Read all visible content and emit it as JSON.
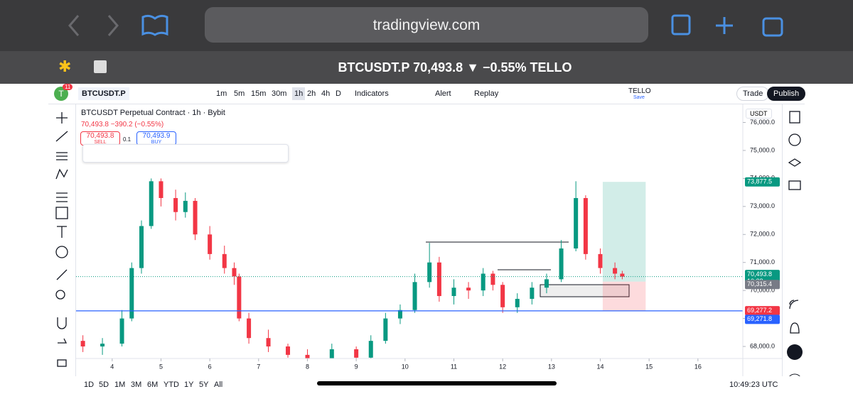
{
  "browser": {
    "url": "tradingview.com",
    "page_title": "BTCUSDT.P 70,493.8 ▼ −0.55% TELLO"
  },
  "toolbar": {
    "avatar": "T",
    "notifications": "11",
    "symbol": "BTCUSDT.P",
    "intervals": [
      "1m",
      "5m",
      "15m",
      "30m",
      "1h",
      "2h",
      "4h",
      "D"
    ],
    "indicators": "Indicators",
    "alert": "Alert",
    "replay": "Replay",
    "layout_name": "TELLO",
    "save": "Save",
    "trade": "Trade",
    "publish": "Publish"
  },
  "legend": {
    "title": "BTCUSDT Perpetual Contract · 1h · Bybit",
    "quote": "70,493.8 −390.2 (−0.55%)",
    "sell_price": "70,493.8",
    "sell": "SELL",
    "quantity": "0.1",
    "buy_price": "70,493.9",
    "buy": "BUY"
  },
  "chart_data": {
    "type": "candlestick",
    "currency": "USDT",
    "x": [
      3.4,
      3.8,
      4.2,
      4.4,
      4.6,
      4.8,
      5.0,
      5.3,
      5.5,
      5.7,
      6.0,
      6.3,
      6.5,
      6.6,
      6.8,
      7.2,
      7.6,
      8.0,
      8.5,
      9.0,
      9.3,
      9.6,
      9.9,
      10.2,
      10.5,
      10.7,
      11.0,
      11.3,
      11.6,
      11.8,
      12.0,
      12.3,
      12.6,
      12.9,
      13.2,
      13.5,
      13.7,
      14.0,
      14.3,
      14.45
    ],
    "open": [
      68200,
      68000,
      68100,
      69000,
      70800,
      72300,
      73900,
      73300,
      72800,
      73200,
      72000,
      71300,
      70800,
      70500,
      69000,
      68300,
      68000,
      67700,
      67500,
      67900,
      67600,
      68200,
      69000,
      69300,
      70300,
      71000,
      69800,
      70100,
      70000,
      70600,
      70200,
      69400,
      69700,
      70100,
      70400,
      71500,
      73300,
      71300,
      70800,
      70600
    ],
    "high": [
      68400,
      68300,
      69300,
      71000,
      72500,
      74000,
      74000,
      73600,
      73500,
      73300,
      72300,
      71600,
      71000,
      70600,
      69200,
      68600,
      68100,
      67900,
      68100,
      68000,
      68400,
      69200,
      69500,
      70600,
      71700,
      71200,
      70400,
      70300,
      70800,
      70700,
      70300,
      69900,
      70300,
      70600,
      71800,
      73900,
      73400,
      71500,
      71000,
      70700
    ],
    "low": [
      67800,
      67700,
      68000,
      68900,
      70600,
      72200,
      73000,
      72500,
      72600,
      71800,
      71100,
      70600,
      70200,
      68900,
      68100,
      67800,
      67600,
      67400,
      67400,
      67500,
      67500,
      68100,
      68800,
      69200,
      70100,
      69600,
      69500,
      69700,
      69800,
      70000,
      69200,
      69200,
      69500,
      69900,
      70300,
      71400,
      71100,
      70600,
      70400,
      70400
    ],
    "close": [
      68000,
      68100,
      69000,
      70800,
      72300,
      73900,
      73300,
      72800,
      73200,
      72000,
      71300,
      70800,
      70500,
      69000,
      68300,
      68000,
      67700,
      67500,
      67900,
      67600,
      68200,
      69000,
      69300,
      70300,
      71000,
      69800,
      70100,
      70000,
      70600,
      70200,
      69400,
      69700,
      70100,
      70400,
      71500,
      73300,
      71300,
      70800,
      70600,
      70493.8
    ],
    "colors": {
      "up": "#089981",
      "down": "#f23645"
    },
    "xlim": [
      3.26,
      16.92
    ],
    "xticks": [
      4,
      5,
      6,
      7,
      8,
      9,
      10,
      11,
      12,
      13,
      14,
      15,
      16
    ],
    "ylim": [
      67570,
      76570
    ],
    "yticks": [
      {
        "value": 68000,
        "label": "68,000.0"
      },
      {
        "value": 69000,
        "label": "69,000.0"
      },
      {
        "value": 70000,
        "label": "70,000.0"
      },
      {
        "value": 71000,
        "label": "71,000.0"
      },
      {
        "value": 72000,
        "label": "72,000.0"
      },
      {
        "value": 73000,
        "label": "73,000.0"
      },
      {
        "value": 74000,
        "label": "74,000.0"
      },
      {
        "value": 75000,
        "label": "75,000.0"
      },
      {
        "value": 76000,
        "label": "76,000.0"
      }
    ],
    "price_line": {
      "value": 69271.8,
      "label": "69,271.8",
      "color": "#2962ff"
    },
    "last_price": {
      "value": 70493.8,
      "label": "70,493.8",
      "countdown": "10:38"
    },
    "position": {
      "start": 14.05,
      "end": 14.93,
      "target": {
        "value": 73877.5,
        "label": "73,877.5"
      },
      "entry": {
        "value": 70315.4,
        "label": "70,315.4"
      },
      "stop": {
        "value": 69277.2,
        "label": "69,277.2"
      }
    }
  },
  "bottom": {
    "ranges": [
      "1D",
      "5D",
      "1M",
      "3M",
      "6M",
      "YTD",
      "1Y",
      "5Y",
      "All"
    ],
    "time": "10:49:23 UTC"
  }
}
